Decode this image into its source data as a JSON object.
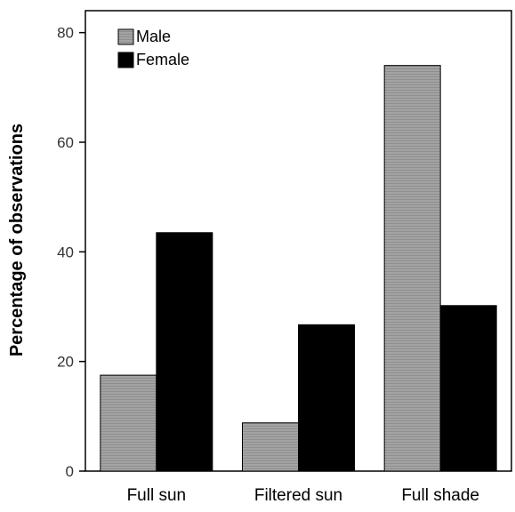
{
  "chart_data": {
    "type": "bar",
    "title": "",
    "xlabel": "",
    "ylabel": "Percentage of observations",
    "categories": [
      "Full sun",
      "Filtered sun",
      "Full shade"
    ],
    "series": [
      {
        "name": "Male",
        "values": [
          17.5,
          8.8,
          74
        ],
        "color": "#a0a0a0"
      },
      {
        "name": "Female",
        "values": [
          43.5,
          26.7,
          30.2
        ],
        "color": "#000000"
      }
    ],
    "ylim": [
      0,
      84
    ],
    "yticks": [
      0,
      20,
      40,
      60,
      80
    ],
    "grid": false,
    "legend": "top-left"
  }
}
